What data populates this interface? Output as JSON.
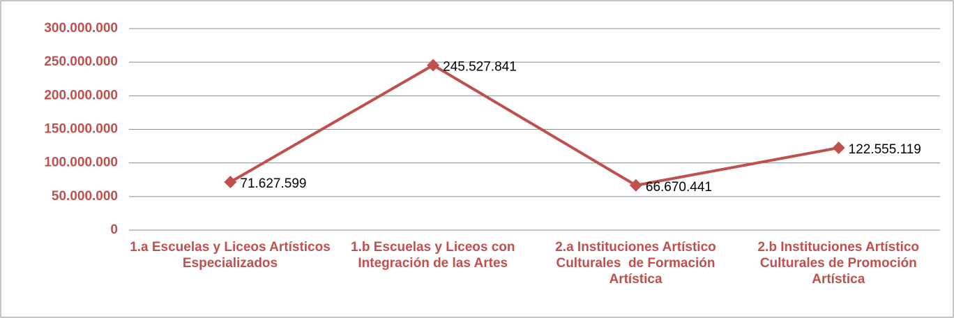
{
  "chart_data": {
    "type": "line",
    "categories": [
      "1.a Escuelas y Liceos Artísticos Especializados",
      "1.b Escuelas y Liceos con Integración de las Artes",
      "2.a Instituciones Artístico Culturales  de Formación Artística",
      "2.b Instituciones Artístico Culturales de Promoción Artística"
    ],
    "series": [
      {
        "color": "#c0504d",
        "values": [
          71627599,
          245527841,
          66670441,
          122555119
        ],
        "value_labels": [
          "71.627.599",
          "245.527.841",
          "66.670.441",
          "122.555.119"
        ]
      }
    ],
    "ylim": [
      0,
      300000000
    ],
    "yticks": [
      {
        "value": 0,
        "label": "0"
      },
      {
        "value": 50000000,
        "label": "50.000.000"
      },
      {
        "value": 100000000,
        "label": "100.000.000"
      },
      {
        "value": 150000000,
        "label": "150.000.000"
      },
      {
        "value": 200000000,
        "label": "200.000.000"
      },
      {
        "value": 250000000,
        "label": "250.000.000"
      },
      {
        "value": 300000000,
        "label": "300.000.000"
      }
    ],
    "grid": true
  }
}
